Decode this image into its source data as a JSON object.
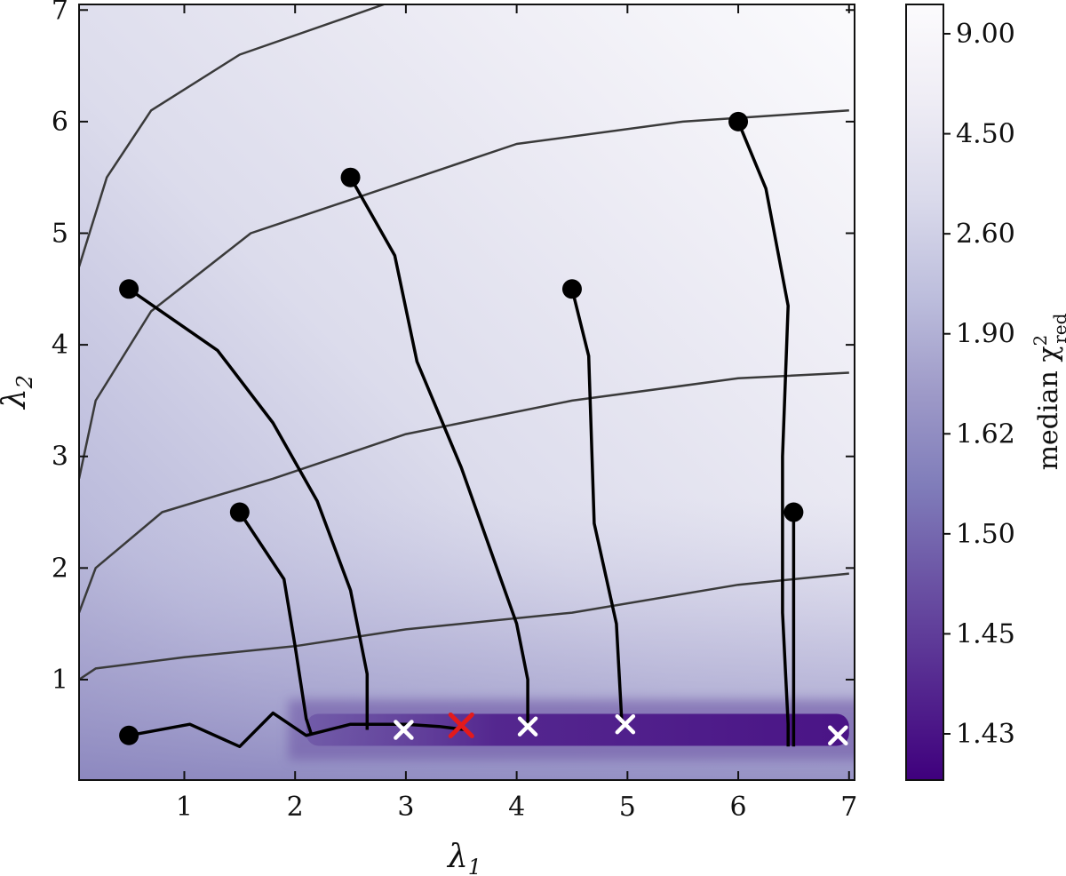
{
  "chart_data": {
    "type": "heatmap",
    "xlabel": "λ",
    "xlabel_sub": "1",
    "ylabel": "λ",
    "ylabel_sub": "2",
    "xlim": [
      0.05,
      7.05
    ],
    "ylim": [
      0.1,
      7.05
    ],
    "xticks": [
      1,
      2,
      3,
      4,
      5,
      6,
      7
    ],
    "yticks": [
      1,
      2,
      3,
      4,
      5,
      6,
      7
    ],
    "colorbar": {
      "label": "median χ",
      "label_sup": "2",
      "label_sub": "red",
      "tick_labels": [
        "9.00",
        "4.50",
        "2.60",
        "1.90",
        "1.62",
        "1.50",
        "1.45",
        "1.43"
      ],
      "colors": [
        "#3f007d",
        "#54278f",
        "#6a51a3",
        "#807dba",
        "#9e9ac8",
        "#bcbddc",
        "#dadaeb",
        "#efedf5",
        "#fcfbfd"
      ]
    },
    "minimum_valley": {
      "lambda1_range": [
        2.1,
        7.0
      ],
      "lambda2": 0.55
    },
    "contour_levels": [
      [
        [
          0.05,
          1.0
        ],
        [
          0.2,
          1.1
        ],
        [
          1.0,
          1.2
        ],
        [
          2.0,
          1.3
        ],
        [
          3.0,
          1.45
        ],
        [
          4.5,
          1.6
        ],
        [
          6.0,
          1.85
        ],
        [
          7.0,
          1.95
        ]
      ],
      [
        [
          0.05,
          1.6
        ],
        [
          0.2,
          2.0
        ],
        [
          0.8,
          2.5
        ],
        [
          1.8,
          2.8
        ],
        [
          3.0,
          3.2
        ],
        [
          4.5,
          3.5
        ],
        [
          6.0,
          3.7
        ],
        [
          7.0,
          3.75
        ]
      ],
      [
        [
          0.05,
          2.8
        ],
        [
          0.2,
          3.5
        ],
        [
          0.7,
          4.3
        ],
        [
          1.6,
          5.0
        ],
        [
          2.8,
          5.4
        ],
        [
          4.0,
          5.8
        ],
        [
          5.5,
          6.0
        ],
        [
          7.0,
          6.1
        ]
      ],
      [
        [
          0.05,
          4.7
        ],
        [
          0.3,
          5.5
        ],
        [
          0.7,
          6.1
        ],
        [
          1.5,
          6.6
        ],
        [
          2.8,
          7.05
        ]
      ]
    ],
    "trajectories": [
      {
        "start": [
          0.5,
          4.5
        ],
        "path": [
          [
            0.5,
            4.5
          ],
          [
            1.3,
            3.95
          ],
          [
            1.8,
            3.3
          ],
          [
            2.2,
            2.6
          ],
          [
            2.5,
            1.8
          ],
          [
            2.65,
            1.05
          ],
          [
            2.65,
            0.55
          ]
        ]
      },
      {
        "start": [
          1.5,
          2.5
        ],
        "path": [
          [
            1.5,
            2.5
          ],
          [
            1.9,
            1.9
          ],
          [
            2.0,
            1.3
          ],
          [
            2.1,
            0.65
          ],
          [
            2.15,
            0.5
          ]
        ]
      },
      {
        "start": [
          2.5,
          5.5
        ],
        "path": [
          [
            2.5,
            5.5
          ],
          [
            2.9,
            4.8
          ],
          [
            3.1,
            3.85
          ],
          [
            3.5,
            2.9
          ],
          [
            3.75,
            2.2
          ],
          [
            4.0,
            1.5
          ],
          [
            4.1,
            1.0
          ],
          [
            4.1,
            0.6
          ]
        ]
      },
      {
        "start": [
          4.5,
          4.5
        ],
        "path": [
          [
            4.5,
            4.5
          ],
          [
            4.65,
            3.9
          ],
          [
            4.7,
            2.4
          ],
          [
            4.9,
            1.5
          ],
          [
            4.95,
            0.6
          ]
        ]
      },
      {
        "start": [
          6.0,
          6.0
        ],
        "path": [
          [
            6.0,
            6.0
          ],
          [
            6.25,
            5.4
          ],
          [
            6.45,
            4.35
          ],
          [
            6.4,
            3.0
          ],
          [
            6.4,
            1.6
          ],
          [
            6.45,
            0.6
          ],
          [
            6.45,
            0.4
          ]
        ]
      },
      {
        "start": [
          6.5,
          2.5
        ],
        "path": [
          [
            6.5,
            2.5
          ],
          [
            6.5,
            1.6
          ],
          [
            6.5,
            0.6
          ],
          [
            6.5,
            0.4
          ]
        ]
      },
      {
        "start": [
          0.5,
          0.5
        ],
        "path": [
          [
            0.5,
            0.5
          ],
          [
            1.05,
            0.6
          ],
          [
            1.5,
            0.4
          ],
          [
            1.8,
            0.7
          ],
          [
            2.1,
            0.5
          ],
          [
            2.5,
            0.6
          ],
          [
            3.0,
            0.6
          ],
          [
            3.3,
            0.58
          ],
          [
            3.55,
            0.55
          ]
        ]
      }
    ],
    "end_points": [
      [
        2.98,
        0.55
      ],
      [
        4.1,
        0.58
      ],
      [
        4.98,
        0.6
      ],
      [
        6.9,
        0.5
      ]
    ],
    "best_point": [
      3.5,
      0.59
    ]
  }
}
